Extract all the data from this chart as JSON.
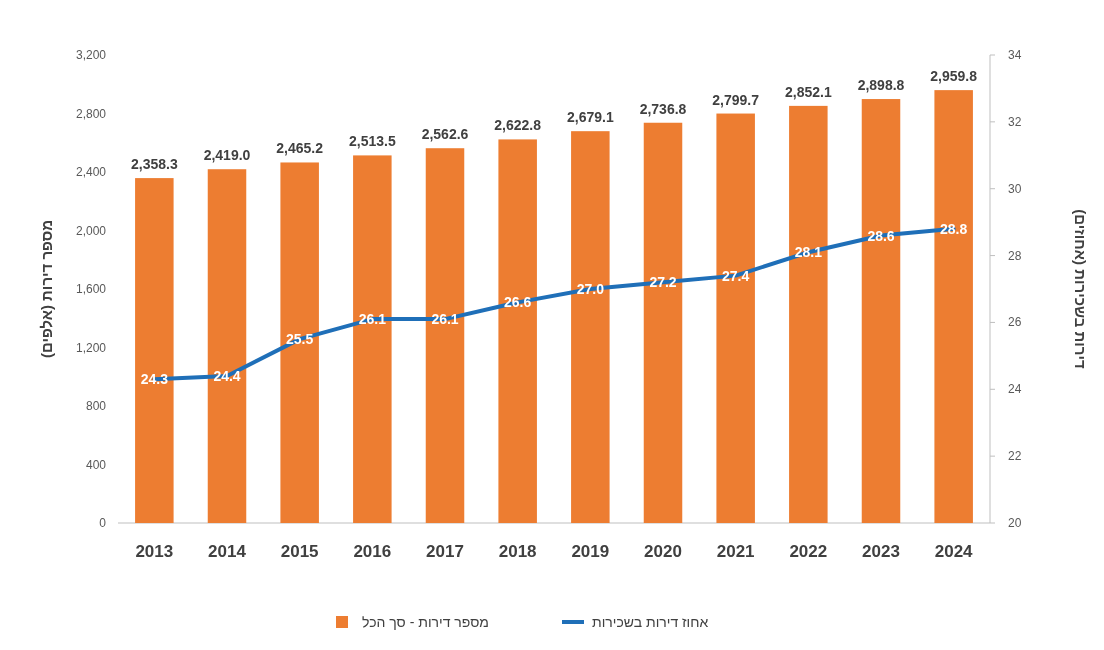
{
  "chart_data": {
    "type": "bar",
    "categories": [
      "2013",
      "2014",
      "2015",
      "2016",
      "2017",
      "2018",
      "2019",
      "2020",
      "2021",
      "2022",
      "2023",
      "2024"
    ],
    "ylabel": "מספר דירות (אלפים)",
    "y2label": "דירות בשכירות (אחוזים)",
    "ylim": [
      0,
      3200
    ],
    "yticks": [
      0,
      400,
      800,
      {
        "value": 1200,
        "label": "1,200"
      },
      {
        "value": 1600,
        "label": "1,600"
      },
      {
        "value": 2000,
        "label": "2,000"
      },
      {
        "value": 2400,
        "label": "2,400"
      },
      {
        "value": 2800,
        "label": "2,800"
      },
      {
        "value": 3200,
        "label": "3,200"
      }
    ],
    "y2lim": [
      20,
      34
    ],
    "y2ticks": [
      20,
      22,
      24,
      26,
      28,
      30,
      32,
      34
    ],
    "legend": "bottom",
    "series": [
      {
        "name": "מספר דירות - סך הכל",
        "color": "#ed7d31",
        "values": [
          2358.3,
          2419.0,
          2465.2,
          2513.5,
          2562.6,
          2622.8,
          2679.1,
          2736.8,
          2799.7,
          2852.1,
          2898.8,
          2959.8
        ],
        "value_labels": [
          "2,358.3",
          "2,419.0",
          "2,465.2",
          "2,513.5",
          "2,562.6",
          "2,622.8",
          "2,679.1",
          "2,736.8",
          "2,799.7",
          "2,852.1",
          "2,898.8",
          "2,959.8"
        ]
      },
      {
        "name": "אחוז דירות בשכירות",
        "type": "line",
        "axis": "y2",
        "color": "#1f6fb8",
        "values": [
          24.3,
          24.4,
          25.5,
          26.1,
          26.1,
          26.6,
          27.0,
          27.2,
          27.4,
          28.1,
          28.6,
          28.8
        ],
        "value_labels": [
          "24.3",
          "24.4",
          "25.5",
          "26.1",
          "26.1",
          "26.6",
          "27.0",
          "27.2",
          "27.4",
          "28.1",
          "28.6",
          "28.8"
        ]
      }
    ]
  }
}
